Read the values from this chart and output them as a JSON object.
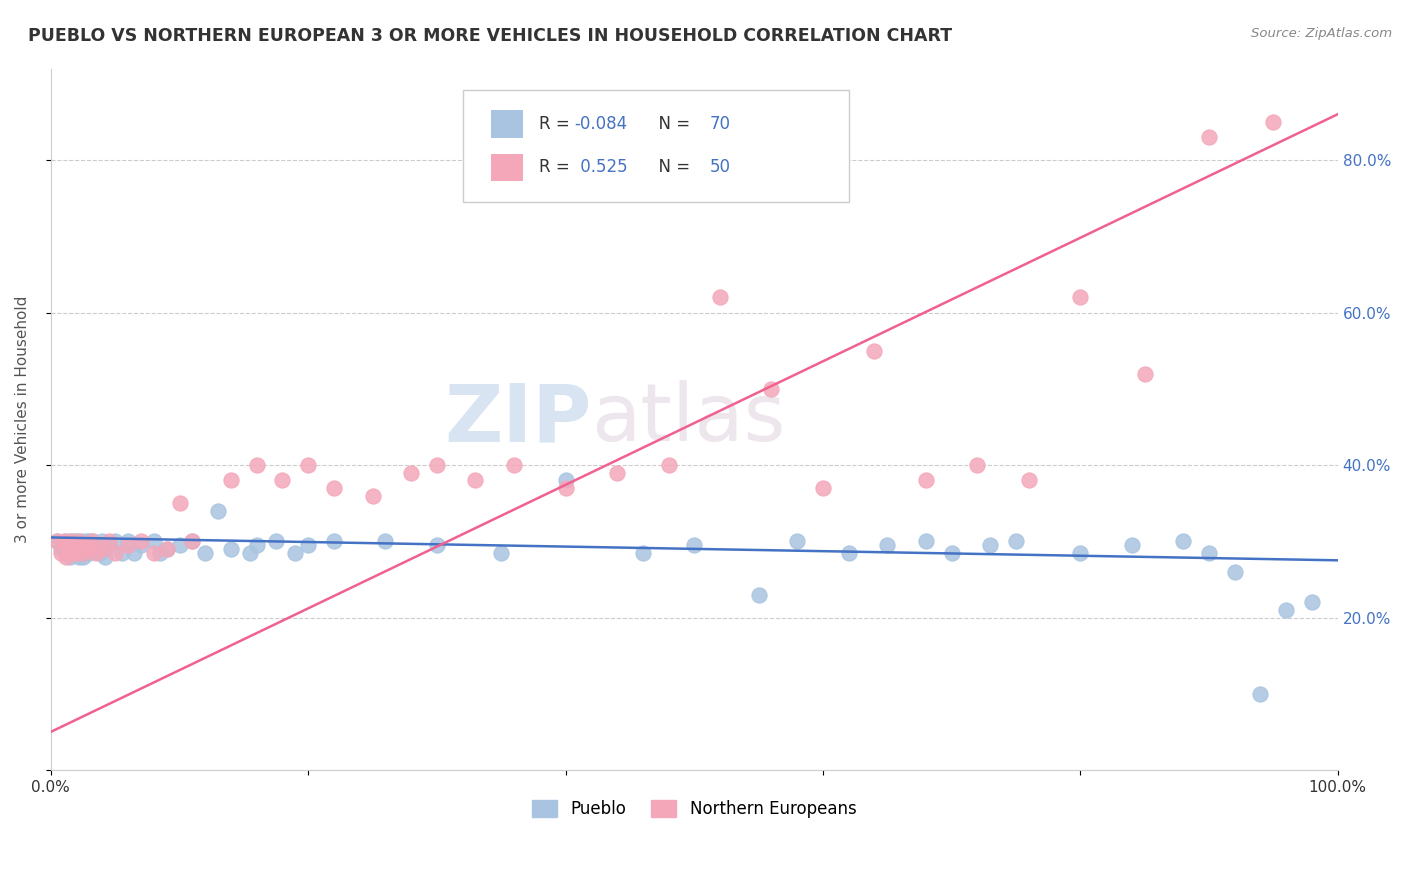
{
  "title": "PUEBLO VS NORTHERN EUROPEAN 3 OR MORE VEHICLES IN HOUSEHOLD CORRELATION CHART",
  "source": "Source: ZipAtlas.com",
  "ylabel": "3 or more Vehicles in Household",
  "xlim": [
    0.0,
    1.0
  ],
  "ylim": [
    0.0,
    0.92
  ],
  "x_ticks": [
    0.0,
    0.2,
    0.4,
    0.6,
    0.8,
    1.0
  ],
  "x_tick_labels": [
    "0.0%",
    "",
    "",
    "",
    "",
    "100.0%"
  ],
  "y_ticks": [
    0.0,
    0.2,
    0.4,
    0.6,
    0.8
  ],
  "y_tick_labels_right": [
    "",
    "20.0%",
    "40.0%",
    "60.0%",
    "80.0%"
  ],
  "pueblo_color": "#a8c4e0",
  "northern_color": "#f4a7b9",
  "line_pueblo_color": "#4472c4",
  "line_northern_color": "#f06090",
  "legend_R_pueblo": "-0.084",
  "legend_N_pueblo": "70",
  "legend_R_northern": " 0.525",
  "legend_N_northern": "50",
  "watermark_zip": "ZIP",
  "watermark_atlas": "atlas",
  "pueblo_x": [
    0.005,
    0.008,
    0.01,
    0.012,
    0.013,
    0.015,
    0.015,
    0.016,
    0.017,
    0.018,
    0.02,
    0.02,
    0.022,
    0.022,
    0.024,
    0.025,
    0.025,
    0.026,
    0.027,
    0.028,
    0.03,
    0.03,
    0.032,
    0.033,
    0.035,
    0.038,
    0.04,
    0.042,
    0.045,
    0.05,
    0.055,
    0.06,
    0.065,
    0.07,
    0.08,
    0.085,
    0.09,
    0.1,
    0.11,
    0.12,
    0.13,
    0.14,
    0.155,
    0.16,
    0.175,
    0.19,
    0.2,
    0.22,
    0.26,
    0.3,
    0.35,
    0.4,
    0.46,
    0.5,
    0.55,
    0.58,
    0.62,
    0.65,
    0.68,
    0.7,
    0.73,
    0.75,
    0.8,
    0.84,
    0.88,
    0.9,
    0.92,
    0.94,
    0.96,
    0.98
  ],
  "pueblo_y": [
    0.3,
    0.29,
    0.29,
    0.3,
    0.285,
    0.28,
    0.29,
    0.3,
    0.295,
    0.3,
    0.3,
    0.285,
    0.295,
    0.28,
    0.3,
    0.28,
    0.29,
    0.295,
    0.285,
    0.3,
    0.3,
    0.285,
    0.295,
    0.3,
    0.29,
    0.285,
    0.3,
    0.28,
    0.295,
    0.3,
    0.285,
    0.3,
    0.285,
    0.295,
    0.3,
    0.285,
    0.29,
    0.295,
    0.3,
    0.285,
    0.34,
    0.29,
    0.285,
    0.295,
    0.3,
    0.285,
    0.295,
    0.3,
    0.3,
    0.295,
    0.285,
    0.38,
    0.285,
    0.295,
    0.23,
    0.3,
    0.285,
    0.295,
    0.3,
    0.285,
    0.295,
    0.3,
    0.285,
    0.295,
    0.3,
    0.285,
    0.26,
    0.1,
    0.21,
    0.22
  ],
  "northern_x": [
    0.005,
    0.008,
    0.01,
    0.012,
    0.013,
    0.015,
    0.015,
    0.016,
    0.017,
    0.018,
    0.02,
    0.022,
    0.025,
    0.028,
    0.03,
    0.032,
    0.035,
    0.04,
    0.045,
    0.05,
    0.06,
    0.07,
    0.08,
    0.09,
    0.1,
    0.11,
    0.14,
    0.16,
    0.18,
    0.2,
    0.22,
    0.25,
    0.28,
    0.3,
    0.33,
    0.36,
    0.4,
    0.44,
    0.48,
    0.52,
    0.56,
    0.6,
    0.64,
    0.68,
    0.72,
    0.76,
    0.8,
    0.85,
    0.9,
    0.95
  ],
  "northern_y": [
    0.3,
    0.285,
    0.3,
    0.28,
    0.295,
    0.285,
    0.3,
    0.295,
    0.285,
    0.295,
    0.285,
    0.3,
    0.285,
    0.295,
    0.29,
    0.3,
    0.285,
    0.29,
    0.3,
    0.285,
    0.295,
    0.3,
    0.285,
    0.29,
    0.35,
    0.3,
    0.38,
    0.4,
    0.38,
    0.4,
    0.37,
    0.36,
    0.39,
    0.4,
    0.38,
    0.4,
    0.37,
    0.39,
    0.4,
    0.62,
    0.5,
    0.37,
    0.55,
    0.38,
    0.4,
    0.38,
    0.62,
    0.52,
    0.83,
    0.85
  ],
  "background_color": "#ffffff",
  "grid_color": "#cccccc"
}
